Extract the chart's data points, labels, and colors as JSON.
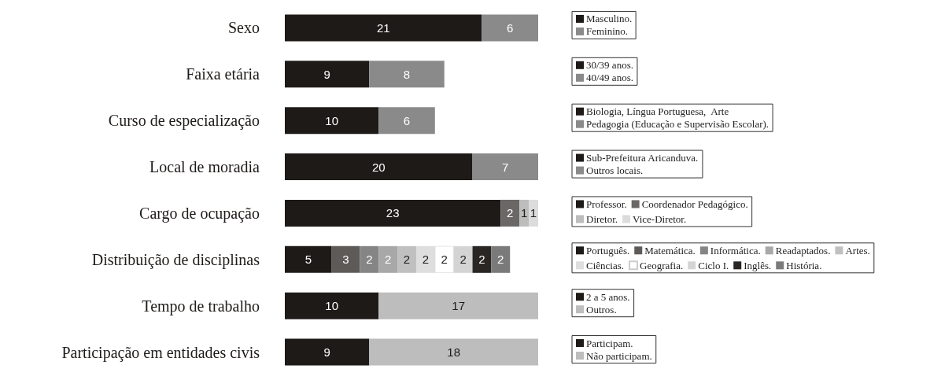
{
  "chart_data": {
    "type": "bar",
    "orientation": "horizontal",
    "stacked": true,
    "data_labels": true,
    "legend": "right",
    "categories": [
      "Sexo",
      "Faixa etária",
      "Curso de especialização",
      "Local de moradia",
      "Cargo de ocupação",
      "Distribuição de disciplinas",
      "Tempo de trabalho",
      "Participação em entidades civis"
    ],
    "series": [
      {
        "name": "Masculino.",
        "color": "#1e1a18",
        "values": [
          21,
          null,
          null,
          null,
          null,
          null,
          null,
          null
        ]
      },
      {
        "name": "Feminino.",
        "color": "#8a8a8a",
        "values": [
          6,
          null,
          null,
          null,
          null,
          null,
          null,
          null
        ]
      },
      {
        "name": "30/39 anos.",
        "color": "#1e1a18",
        "values": [
          null,
          9,
          null,
          null,
          null,
          null,
          null,
          null
        ]
      },
      {
        "name": "40/49 anos.",
        "color": "#8a8a8a",
        "values": [
          null,
          8,
          null,
          null,
          null,
          null,
          null,
          null
        ]
      },
      {
        "name": "Biologia, Língua Portuguesa,  Arte",
        "color": "#1e1a18",
        "values": [
          null,
          null,
          10,
          null,
          null,
          null,
          null,
          null
        ]
      },
      {
        "name": "Pedagogia (Educação e Supervisão Escolar).",
        "color": "#8a8a8a",
        "values": [
          null,
          null,
          6,
          null,
          null,
          null,
          null,
          null
        ]
      },
      {
        "name": "Sub-Prefeitura Aricanduva.",
        "color": "#1e1a18",
        "values": [
          null,
          null,
          null,
          20,
          null,
          null,
          null,
          null
        ]
      },
      {
        "name": "Outros locais.",
        "color": "#8a8a8a",
        "values": [
          null,
          null,
          null,
          7,
          null,
          null,
          null,
          null
        ]
      },
      {
        "name": "Professor.",
        "color": "#1e1a18",
        "values": [
          null,
          null,
          null,
          null,
          23,
          null,
          null,
          null
        ]
      },
      {
        "name": "Coordenador Pedagógico.",
        "color": "#6a6766",
        "values": [
          null,
          null,
          null,
          null,
          2,
          null,
          null,
          null
        ]
      },
      {
        "name": "Diretor.",
        "color": "#bdbdbd",
        "values": [
          null,
          null,
          null,
          null,
          1,
          null,
          null,
          null
        ]
      },
      {
        "name": "Vice-Diretor.",
        "color": "#dcdcdc",
        "values": [
          null,
          null,
          null,
          null,
          1,
          null,
          null,
          null
        ]
      },
      {
        "name": "Português.",
        "color": "#1e1a18",
        "values": [
          null,
          null,
          null,
          null,
          null,
          5,
          null,
          null
        ]
      },
      {
        "name": "Matemática.",
        "color": "#5e5a58",
        "values": [
          null,
          null,
          null,
          null,
          null,
          3,
          null,
          null
        ]
      },
      {
        "name": "Informática.",
        "color": "#858585",
        "values": [
          null,
          null,
          null,
          null,
          null,
          2,
          null,
          null
        ]
      },
      {
        "name": "Readaptados.",
        "color": "#a8a8a8",
        "values": [
          null,
          null,
          null,
          null,
          null,
          2,
          null,
          null
        ]
      },
      {
        "name": "Artes.",
        "color": "#c0c0c0",
        "values": [
          null,
          null,
          null,
          null,
          null,
          2,
          null,
          null
        ]
      },
      {
        "name": "Ciências.",
        "color": "#dedede",
        "values": [
          null,
          null,
          null,
          null,
          null,
          2,
          null,
          null
        ]
      },
      {
        "name": "Geografia.",
        "color": "#ffffff",
        "values": [
          null,
          null,
          null,
          null,
          null,
          2,
          null,
          null
        ]
      },
      {
        "name": "Ciclo I.",
        "color": "#d4d4d4",
        "values": [
          null,
          null,
          null,
          null,
          null,
          2,
          null,
          null
        ]
      },
      {
        "name": "Inglês.",
        "color": "#2a2624",
        "values": [
          null,
          null,
          null,
          null,
          null,
          2,
          null,
          null
        ]
      },
      {
        "name": "História.",
        "color": "#7a7a7a",
        "values": [
          null,
          null,
          null,
          null,
          null,
          2,
          null,
          null
        ]
      },
      {
        "name": "2 a 5 anos.",
        "color": "#1e1a18",
        "values": [
          null,
          null,
          null,
          null,
          null,
          null,
          10,
          null
        ]
      },
      {
        "name": "Outros.",
        "color": "#bdbdbd",
        "values": [
          null,
          null,
          null,
          null,
          null,
          null,
          17,
          null
        ]
      },
      {
        "name": "Participam.",
        "color": "#1e1a18",
        "values": [
          null,
          null,
          null,
          null,
          null,
          null,
          null,
          9
        ]
      },
      {
        "name": "Não participam.",
        "color": "#bdbdbd",
        "values": [
          null,
          null,
          null,
          null,
          null,
          null,
          null,
          18
        ]
      }
    ]
  }
}
